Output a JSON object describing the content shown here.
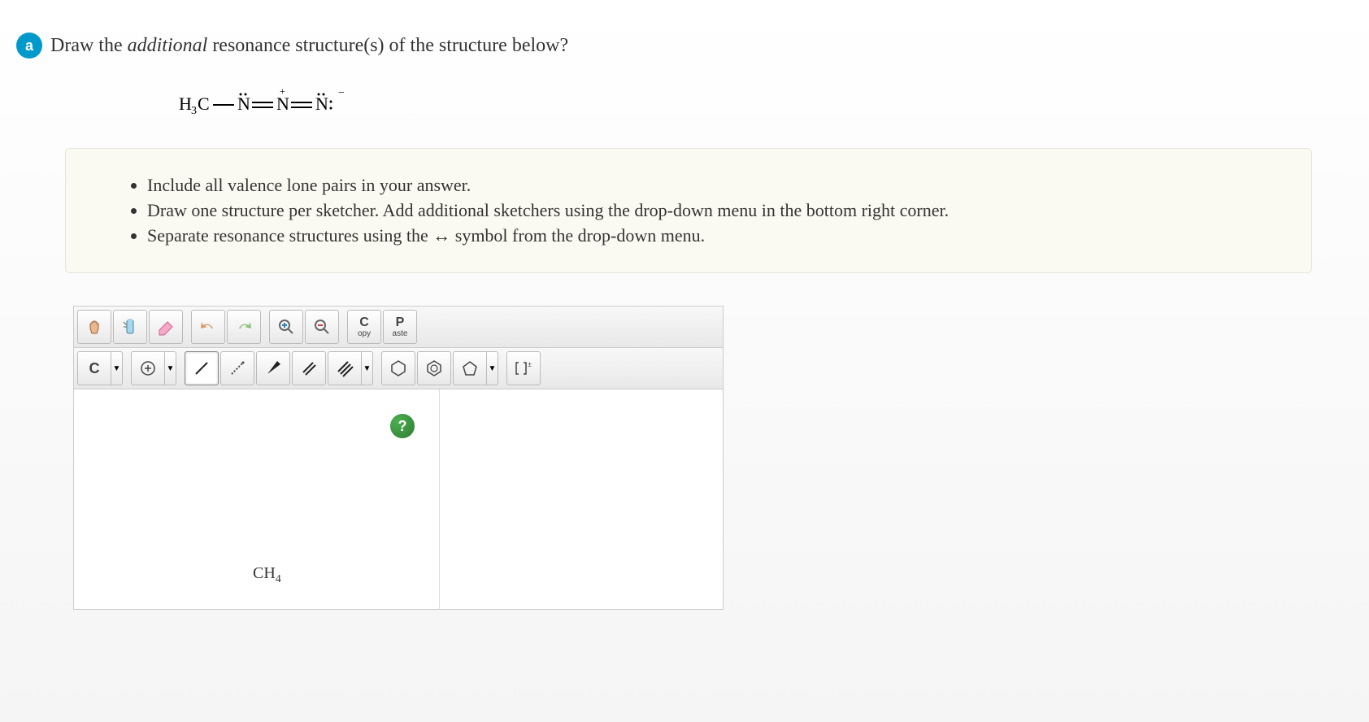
{
  "part_label": "a",
  "question_html": "Draw the <em>additional</em> resonance structure(s) of the structure below?",
  "formula_svg_title": "H3C—N(double-dot)=N(+)=N(double-dot): (-)",
  "instructions": [
    "Include all valence lone pairs in your answer.",
    "Draw one structure per sketcher. Add additional sketchers using the drop-down menu in the bottom right corner.",
    "Separate resonance structures using the ↔ symbol from the drop-down menu."
  ],
  "toolbar": {
    "copy_top": "C",
    "copy_bottom": "opy",
    "paste_top": "P",
    "paste_bottom": "aste",
    "element_label": "C"
  },
  "canvas_formula": "CH",
  "canvas_formula_sub": "4",
  "help_label": "?",
  "colors": {
    "badge_bg": "#0099cc",
    "instructions_bg": "#fbfaf2",
    "instructions_border": "#e6e4d9",
    "help_bg": "#2e7d32"
  }
}
